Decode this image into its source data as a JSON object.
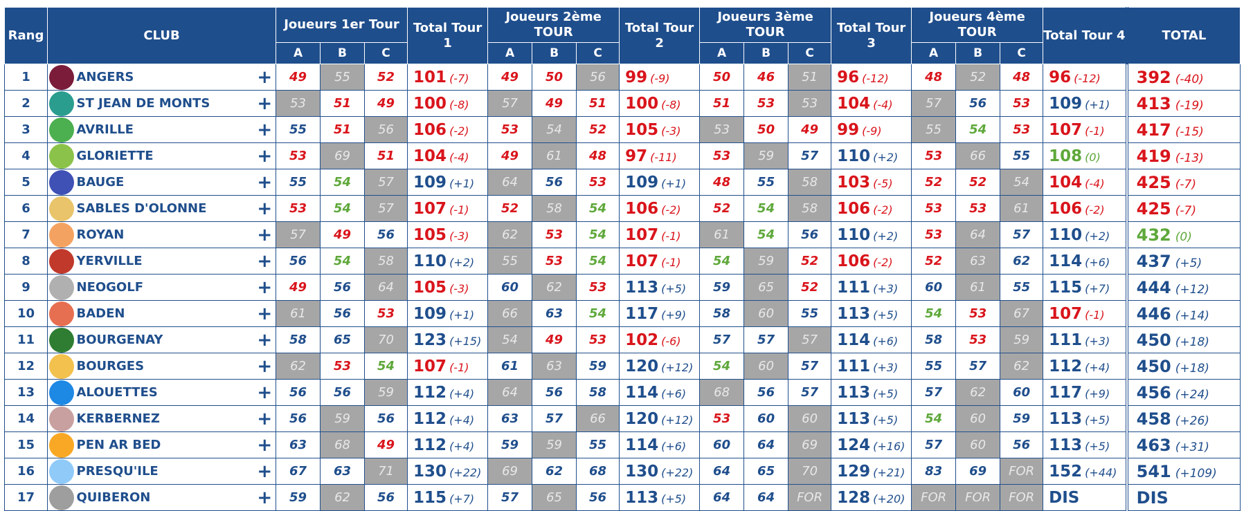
{
  "headers": {
    "rang": "Rang",
    "club": "CLUB",
    "r1": "Joueurs 1er Tour",
    "t1": "Total Tour 1",
    "r2": "Joueurs 2ème TOUR",
    "t2": "Total Tour 2",
    "r3": "Joueurs 3ème TOUR",
    "t3": "Total Tour 3",
    "r4": "Joueurs 4ème TOUR",
    "t4": "Total Tour 4",
    "total": "TOTAL",
    "a": "A",
    "b": "B",
    "c": "C"
  },
  "expand_symbol": "+",
  "colors": {
    "header_bg": "#1f4e8c",
    "red": "#d9141b",
    "blue": "#1f4e8c",
    "green": "#5ea83a",
    "gray_cell": "#a6a6a6"
  },
  "rows": [
    {
      "rank": "1",
      "club": "ANGERS",
      "logo": "angers-shield",
      "s": [
        [
          "49",
          "r"
        ],
        [
          "55",
          "g"
        ],
        [
          "52",
          "r"
        ],
        [
          "49",
          "r"
        ],
        [
          "50",
          "r"
        ],
        [
          "56",
          "g"
        ],
        [
          "50",
          "r"
        ],
        [
          "46",
          "r"
        ],
        [
          "51",
          "g"
        ],
        [
          "48",
          "r"
        ],
        [
          "52",
          "g"
        ],
        [
          "48",
          "r"
        ]
      ],
      "t": [
        [
          "101",
          "(-7)",
          "r"
        ],
        [
          "99",
          "(-9)",
          "r"
        ],
        [
          "96",
          "(-12)",
          "r"
        ],
        [
          "96",
          "(-12)",
          "r"
        ]
      ],
      "total": [
        "392",
        "(-40)",
        "r"
      ]
    },
    {
      "rank": "2",
      "club": "ST JEAN DE MONTS",
      "logo": "st-jean-de-monts-logo",
      "s": [
        [
          "53",
          "g"
        ],
        [
          "51",
          "r"
        ],
        [
          "49",
          "r"
        ],
        [
          "57",
          "g"
        ],
        [
          "49",
          "r"
        ],
        [
          "51",
          "r"
        ],
        [
          "51",
          "r"
        ],
        [
          "53",
          "r"
        ],
        [
          "53",
          "g"
        ],
        [
          "57",
          "g"
        ],
        [
          "56",
          "b"
        ],
        [
          "53",
          "r"
        ]
      ],
      "t": [
        [
          "100",
          "(-8)",
          "r"
        ],
        [
          "100",
          "(-8)",
          "r"
        ],
        [
          "104",
          "(-4)",
          "r"
        ],
        [
          "109",
          "(+1)",
          "b"
        ]
      ],
      "total": [
        "413",
        "(-19)",
        "r"
      ]
    },
    {
      "rank": "3",
      "club": "AVRILLE",
      "logo": "avrille-logo",
      "s": [
        [
          "55",
          "b"
        ],
        [
          "51",
          "r"
        ],
        [
          "56",
          "g"
        ],
        [
          "53",
          "r"
        ],
        [
          "54",
          "g"
        ],
        [
          "52",
          "r"
        ],
        [
          "53",
          "g"
        ],
        [
          "50",
          "r"
        ],
        [
          "49",
          "r"
        ],
        [
          "55",
          "g"
        ],
        [
          "54",
          "gr"
        ],
        [
          "53",
          "r"
        ]
      ],
      "t": [
        [
          "106",
          "(-2)",
          "r"
        ],
        [
          "105",
          "(-3)",
          "r"
        ],
        [
          "99",
          "(-9)",
          "r"
        ],
        [
          "107",
          "(-1)",
          "r"
        ]
      ],
      "total": [
        "417",
        "(-15)",
        "r"
      ]
    },
    {
      "rank": "4",
      "club": "GLORIETTE",
      "logo": "gloriette-logo",
      "s": [
        [
          "53",
          "r"
        ],
        [
          "69",
          "g"
        ],
        [
          "51",
          "r"
        ],
        [
          "49",
          "r"
        ],
        [
          "61",
          "g"
        ],
        [
          "48",
          "r"
        ],
        [
          "53",
          "r"
        ],
        [
          "59",
          "g"
        ],
        [
          "57",
          "b"
        ],
        [
          "53",
          "r"
        ],
        [
          "66",
          "g"
        ],
        [
          "55",
          "b"
        ]
      ],
      "t": [
        [
          "104",
          "(-4)",
          "r"
        ],
        [
          "97",
          "(-11)",
          "r"
        ],
        [
          "110",
          "(+2)",
          "b"
        ],
        [
          "108",
          "(0)",
          "gr"
        ]
      ],
      "total": [
        "419",
        "(-13)",
        "r"
      ]
    },
    {
      "rank": "5",
      "club": "BAUGE",
      "logo": "bauge-shield",
      "s": [
        [
          "55",
          "b"
        ],
        [
          "54",
          "gr"
        ],
        [
          "57",
          "g"
        ],
        [
          "64",
          "g"
        ],
        [
          "56",
          "b"
        ],
        [
          "53",
          "r"
        ],
        [
          "48",
          "r"
        ],
        [
          "55",
          "b"
        ],
        [
          "58",
          "g"
        ],
        [
          "52",
          "r"
        ],
        [
          "52",
          "r"
        ],
        [
          "54",
          "g"
        ]
      ],
      "t": [
        [
          "109",
          "(+1)",
          "b"
        ],
        [
          "109",
          "(+1)",
          "b"
        ],
        [
          "103",
          "(-5)",
          "r"
        ],
        [
          "104",
          "(-4)",
          "r"
        ]
      ],
      "total": [
        "425",
        "(-7)",
        "r"
      ]
    },
    {
      "rank": "6",
      "club": "SABLES D'OLONNE",
      "logo": "sables-logo",
      "s": [
        [
          "53",
          "r"
        ],
        [
          "54",
          "gr"
        ],
        [
          "57",
          "g"
        ],
        [
          "52",
          "r"
        ],
        [
          "58",
          "g"
        ],
        [
          "54",
          "gr"
        ],
        [
          "52",
          "r"
        ],
        [
          "54",
          "gr"
        ],
        [
          "58",
          "g"
        ],
        [
          "53",
          "r"
        ],
        [
          "53",
          "r"
        ],
        [
          "61",
          "g"
        ]
      ],
      "t": [
        [
          "107",
          "(-1)",
          "r"
        ],
        [
          "106",
          "(-2)",
          "r"
        ],
        [
          "106",
          "(-2)",
          "r"
        ],
        [
          "106",
          "(-2)",
          "r"
        ]
      ],
      "total": [
        "425",
        "(-7)",
        "r"
      ]
    },
    {
      "rank": "7",
      "club": "ROYAN",
      "logo": "royan-logo",
      "s": [
        [
          "57",
          "g"
        ],
        [
          "49",
          "r"
        ],
        [
          "56",
          "b"
        ],
        [
          "62",
          "g"
        ],
        [
          "53",
          "r"
        ],
        [
          "54",
          "gr"
        ],
        [
          "61",
          "g"
        ],
        [
          "54",
          "gr"
        ],
        [
          "56",
          "b"
        ],
        [
          "53",
          "r"
        ],
        [
          "64",
          "g"
        ],
        [
          "57",
          "b"
        ]
      ],
      "t": [
        [
          "105",
          "(-3)",
          "r"
        ],
        [
          "107",
          "(-1)",
          "r"
        ],
        [
          "110",
          "(+2)",
          "b"
        ],
        [
          "110",
          "(+2)",
          "b"
        ]
      ],
      "total": [
        "432",
        "(0)",
        "gr"
      ]
    },
    {
      "rank": "8",
      "club": "YERVILLE",
      "logo": "yerville-shield",
      "s": [
        [
          "56",
          "b"
        ],
        [
          "54",
          "gr"
        ],
        [
          "58",
          "g"
        ],
        [
          "55",
          "g"
        ],
        [
          "53",
          "r"
        ],
        [
          "54",
          "gr"
        ],
        [
          "54",
          "gr"
        ],
        [
          "59",
          "g"
        ],
        [
          "52",
          "r"
        ],
        [
          "52",
          "r"
        ],
        [
          "63",
          "g"
        ],
        [
          "62",
          "b"
        ]
      ],
      "t": [
        [
          "110",
          "(+2)",
          "b"
        ],
        [
          "107",
          "(-1)",
          "r"
        ],
        [
          "106",
          "(-2)",
          "r"
        ],
        [
          "114",
          "(+6)",
          "b"
        ]
      ],
      "total": [
        "437",
        "(+5)",
        "b"
      ]
    },
    {
      "rank": "9",
      "club": "NEOGOLF",
      "logo": "neogolf-logo",
      "s": [
        [
          "49",
          "r"
        ],
        [
          "56",
          "b"
        ],
        [
          "64",
          "g"
        ],
        [
          "60",
          "b"
        ],
        [
          "62",
          "g"
        ],
        [
          "53",
          "r"
        ],
        [
          "59",
          "b"
        ],
        [
          "65",
          "g"
        ],
        [
          "52",
          "r"
        ],
        [
          "60",
          "b"
        ],
        [
          "61",
          "g"
        ],
        [
          "55",
          "b"
        ]
      ],
      "t": [
        [
          "105",
          "(-3)",
          "r"
        ],
        [
          "113",
          "(+5)",
          "b"
        ],
        [
          "111",
          "(+3)",
          "b"
        ],
        [
          "115",
          "(+7)",
          "b"
        ]
      ],
      "total": [
        "444",
        "(+12)",
        "b"
      ]
    },
    {
      "rank": "10",
      "club": "BADEN",
      "logo": "baden-logo",
      "s": [
        [
          "61",
          "g"
        ],
        [
          "56",
          "b"
        ],
        [
          "53",
          "r"
        ],
        [
          "66",
          "g"
        ],
        [
          "63",
          "b"
        ],
        [
          "54",
          "gr"
        ],
        [
          "58",
          "b"
        ],
        [
          "60",
          "g"
        ],
        [
          "55",
          "b"
        ],
        [
          "54",
          "gr"
        ],
        [
          "53",
          "r"
        ],
        [
          "67",
          "g"
        ]
      ],
      "t": [
        [
          "109",
          "(+1)",
          "b"
        ],
        [
          "117",
          "(+9)",
          "b"
        ],
        [
          "113",
          "(+5)",
          "b"
        ],
        [
          "107",
          "(-1)",
          "r"
        ]
      ],
      "total": [
        "446",
        "(+14)",
        "b"
      ]
    },
    {
      "rank": "11",
      "club": "BOURGENAY",
      "logo": "bourgenay-logo",
      "s": [
        [
          "58",
          "b"
        ],
        [
          "65",
          "b"
        ],
        [
          "70",
          "g"
        ],
        [
          "54",
          "g"
        ],
        [
          "49",
          "r"
        ],
        [
          "53",
          "r"
        ],
        [
          "57",
          "b"
        ],
        [
          "57",
          "b"
        ],
        [
          "57",
          "g"
        ],
        [
          "58",
          "b"
        ],
        [
          "53",
          "r"
        ],
        [
          "59",
          "g"
        ]
      ],
      "t": [
        [
          "123",
          "(+15)",
          "b"
        ],
        [
          "102",
          "(-6)",
          "r"
        ],
        [
          "114",
          "(+6)",
          "b"
        ],
        [
          "111",
          "(+3)",
          "b"
        ]
      ],
      "total": [
        "450",
        "(+18)",
        "b"
      ]
    },
    {
      "rank": "12",
      "club": "BOURGES",
      "logo": "bourges-logo",
      "s": [
        [
          "62",
          "g"
        ],
        [
          "53",
          "r"
        ],
        [
          "54",
          "gr"
        ],
        [
          "61",
          "b"
        ],
        [
          "63",
          "g"
        ],
        [
          "59",
          "b"
        ],
        [
          "54",
          "gr"
        ],
        [
          "60",
          "g"
        ],
        [
          "57",
          "b"
        ],
        [
          "55",
          "b"
        ],
        [
          "57",
          "b"
        ],
        [
          "62",
          "g"
        ]
      ],
      "t": [
        [
          "107",
          "(-1)",
          "r"
        ],
        [
          "120",
          "(+12)",
          "b"
        ],
        [
          "111",
          "(+3)",
          "b"
        ],
        [
          "112",
          "(+4)",
          "b"
        ]
      ],
      "total": [
        "450",
        "(+18)",
        "b"
      ]
    },
    {
      "rank": "13",
      "club": "ALOUETTES",
      "logo": "alouettes-logo",
      "s": [
        [
          "56",
          "b"
        ],
        [
          "56",
          "b"
        ],
        [
          "59",
          "g"
        ],
        [
          "64",
          "g"
        ],
        [
          "56",
          "b"
        ],
        [
          "58",
          "b"
        ],
        [
          "68",
          "g"
        ],
        [
          "56",
          "b"
        ],
        [
          "57",
          "b"
        ],
        [
          "57",
          "b"
        ],
        [
          "62",
          "g"
        ],
        [
          "60",
          "b"
        ]
      ],
      "t": [
        [
          "112",
          "(+4)",
          "b"
        ],
        [
          "114",
          "(+6)",
          "b"
        ],
        [
          "113",
          "(+5)",
          "b"
        ],
        [
          "117",
          "(+9)",
          "b"
        ]
      ],
      "total": [
        "456",
        "(+24)",
        "b"
      ]
    },
    {
      "rank": "14",
      "club": "KERBERNEZ",
      "logo": "kerbernez-logo",
      "s": [
        [
          "56",
          "b"
        ],
        [
          "59",
          "g"
        ],
        [
          "56",
          "b"
        ],
        [
          "63",
          "b"
        ],
        [
          "57",
          "b"
        ],
        [
          "66",
          "g"
        ],
        [
          "53",
          "r"
        ],
        [
          "60",
          "b"
        ],
        [
          "60",
          "g"
        ],
        [
          "54",
          "gr"
        ],
        [
          "60",
          "g"
        ],
        [
          "59",
          "b"
        ]
      ],
      "t": [
        [
          "112",
          "(+4)",
          "b"
        ],
        [
          "120",
          "(+12)",
          "b"
        ],
        [
          "113",
          "(+5)",
          "b"
        ],
        [
          "113",
          "(+5)",
          "b"
        ]
      ],
      "total": [
        "458",
        "(+26)",
        "b"
      ]
    },
    {
      "rank": "15",
      "club": "PEN AR BED",
      "logo": "pen-ar-bed-logo",
      "s": [
        [
          "63",
          "b"
        ],
        [
          "68",
          "g"
        ],
        [
          "49",
          "r"
        ],
        [
          "59",
          "b"
        ],
        [
          "59",
          "g"
        ],
        [
          "55",
          "b"
        ],
        [
          "60",
          "b"
        ],
        [
          "64",
          "b"
        ],
        [
          "69",
          "g"
        ],
        [
          "57",
          "b"
        ],
        [
          "60",
          "g"
        ],
        [
          "56",
          "b"
        ]
      ],
      "t": [
        [
          "112",
          "(+4)",
          "b"
        ],
        [
          "114",
          "(+6)",
          "b"
        ],
        [
          "124",
          "(+16)",
          "b"
        ],
        [
          "113",
          "(+5)",
          "b"
        ]
      ],
      "total": [
        "463",
        "(+31)",
        "b"
      ]
    },
    {
      "rank": "16",
      "club": "PRESQU'ILE",
      "logo": "presquile-logo",
      "s": [
        [
          "67",
          "b"
        ],
        [
          "63",
          "b"
        ],
        [
          "71",
          "g"
        ],
        [
          "69",
          "g"
        ],
        [
          "62",
          "b"
        ],
        [
          "68",
          "b"
        ],
        [
          "64",
          "b"
        ],
        [
          "65",
          "b"
        ],
        [
          "70",
          "g"
        ],
        [
          "83",
          "b"
        ],
        [
          "69",
          "b"
        ],
        [
          "FOR",
          "g"
        ]
      ],
      "t": [
        [
          "130",
          "(+22)",
          "b"
        ],
        [
          "130",
          "(+22)",
          "b"
        ],
        [
          "129",
          "(+21)",
          "b"
        ],
        [
          "152",
          "(+44)",
          "b"
        ]
      ],
      "total": [
        "541",
        "(+109)",
        "b"
      ]
    },
    {
      "rank": "17",
      "club": "QUIBERON",
      "logo": "quiberon-logo",
      "s": [
        [
          "59",
          "b"
        ],
        [
          "62",
          "g"
        ],
        [
          "56",
          "b"
        ],
        [
          "57",
          "b"
        ],
        [
          "65",
          "g"
        ],
        [
          "56",
          "b"
        ],
        [
          "64",
          "b"
        ],
        [
          "64",
          "b"
        ],
        [
          "FOR",
          "g"
        ],
        [
          "FOR",
          "g"
        ],
        [
          "FOR",
          "g"
        ],
        [
          "FOR",
          "g"
        ]
      ],
      "t": [
        [
          "115",
          "(+7)",
          "b"
        ],
        [
          "113",
          "(+5)",
          "b"
        ],
        [
          "128",
          "(+20)",
          "b"
        ],
        [
          "DIS",
          "",
          "b"
        ]
      ],
      "total": [
        "DIS",
        "",
        "b"
      ]
    }
  ]
}
